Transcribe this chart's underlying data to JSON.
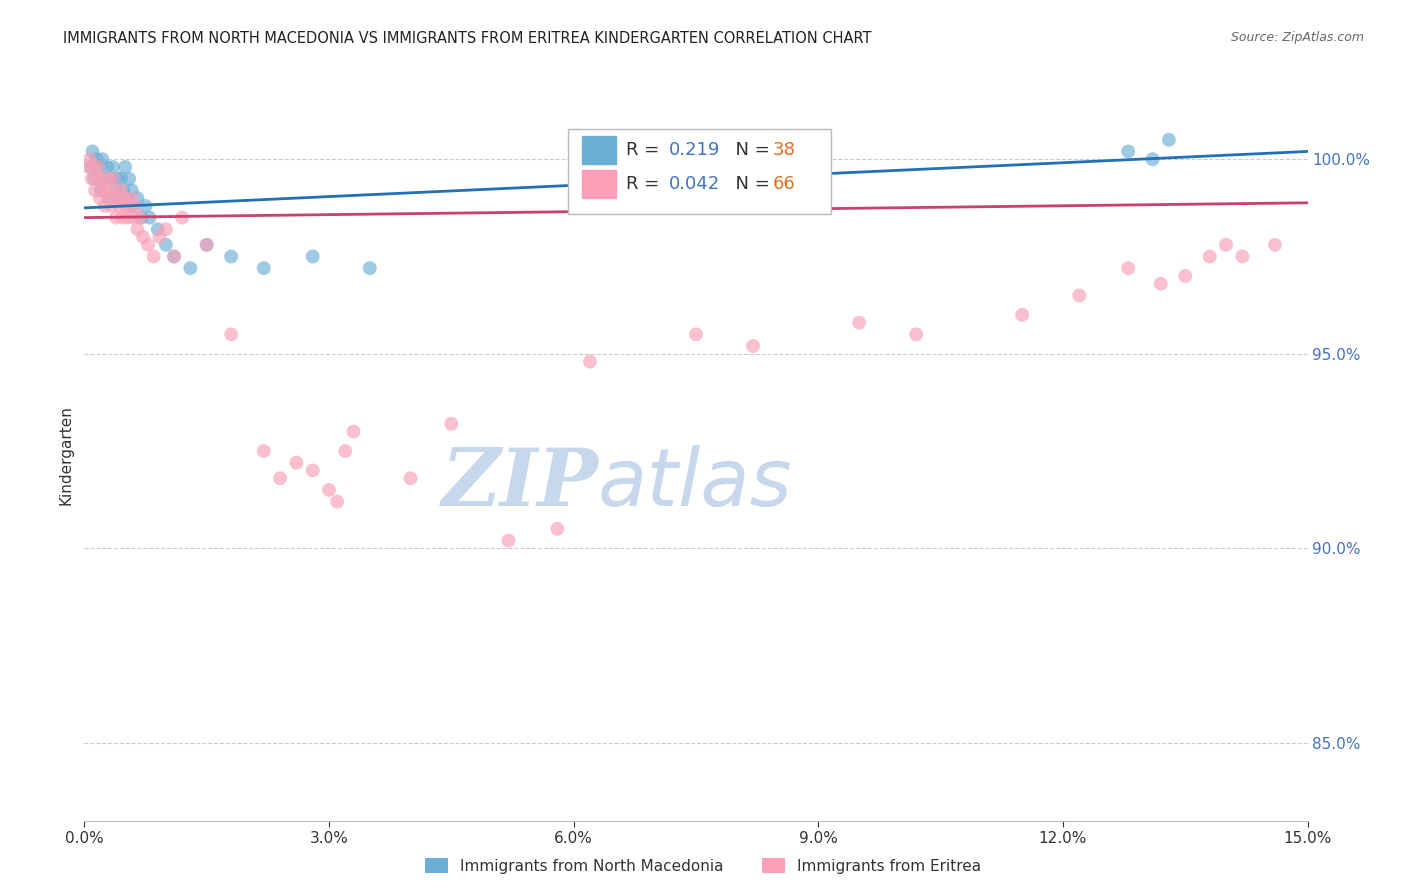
{
  "title": "IMMIGRANTS FROM NORTH MACEDONIA VS IMMIGRANTS FROM ERITREA KINDERGARTEN CORRELATION CHART",
  "source": "Source: ZipAtlas.com",
  "ylabel": "Kindergarten",
  "xlim": [
    0.0,
    15.0
  ],
  "ylim": [
    83.0,
    101.8
  ],
  "yticks": [
    85.0,
    90.0,
    95.0,
    100.0
  ],
  "xticks": [
    0.0,
    3.0,
    6.0,
    9.0,
    12.0,
    15.0
  ],
  "blue_label": "Immigrants from North Macedonia",
  "pink_label": "Immigrants from Eritrea",
  "blue_R": 0.219,
  "blue_N": 38,
  "pink_R": 0.042,
  "pink_N": 66,
  "blue_color": "#6baed6",
  "pink_color": "#fa9fb5",
  "blue_line_color": "#2171b5",
  "pink_line_color": "#c9426b",
  "watermark_zip": "ZIP",
  "watermark_atlas": "atlas",
  "watermark_color_zip": "#c8d8ec",
  "watermark_color_atlas": "#c8d8ec",
  "blue_x": [
    0.08,
    0.1,
    0.12,
    0.15,
    0.18,
    0.2,
    0.22,
    0.25,
    0.28,
    0.3,
    0.32,
    0.35,
    0.38,
    0.4,
    0.42,
    0.45,
    0.48,
    0.5,
    0.52,
    0.55,
    0.58,
    0.6,
    0.65,
    0.7,
    0.75,
    0.8,
    0.9,
    1.0,
    1.1,
    1.3,
    1.5,
    1.8,
    2.2,
    2.8,
    3.5,
    12.8,
    13.1,
    13.3
  ],
  "blue_y": [
    99.8,
    100.2,
    99.5,
    100.0,
    99.8,
    99.2,
    100.0,
    99.5,
    99.8,
    99.0,
    99.5,
    99.8,
    99.2,
    99.5,
    99.0,
    99.5,
    99.2,
    99.8,
    99.0,
    99.5,
    99.2,
    98.8,
    99.0,
    98.5,
    98.8,
    98.5,
    98.2,
    97.8,
    97.5,
    97.2,
    97.8,
    97.5,
    97.2,
    97.5,
    97.2,
    100.2,
    100.0,
    100.5
  ],
  "pink_x": [
    0.05,
    0.07,
    0.09,
    0.11,
    0.13,
    0.15,
    0.17,
    0.19,
    0.21,
    0.23,
    0.25,
    0.27,
    0.29,
    0.31,
    0.33,
    0.35,
    0.37,
    0.39,
    0.41,
    0.43,
    0.45,
    0.47,
    0.49,
    0.51,
    0.53,
    0.55,
    0.58,
    0.6,
    0.62,
    0.65,
    0.68,
    0.72,
    0.78,
    0.85,
    0.92,
    1.0,
    1.1,
    1.2,
    1.5,
    1.8,
    2.2,
    2.4,
    2.6,
    2.8,
    3.0,
    3.1,
    3.2,
    3.3,
    4.0,
    4.5,
    5.2,
    5.8,
    6.2,
    7.5,
    8.2,
    9.5,
    10.2,
    11.5,
    12.2,
    12.8,
    13.2,
    13.5,
    13.8,
    14.0,
    14.2,
    14.6
  ],
  "pink_y": [
    99.8,
    100.0,
    99.5,
    99.8,
    99.2,
    99.5,
    99.8,
    99.0,
    99.5,
    99.2,
    98.8,
    99.2,
    99.5,
    99.0,
    98.8,
    99.5,
    99.2,
    98.5,
    99.0,
    98.8,
    99.2,
    98.5,
    99.0,
    98.8,
    98.5,
    98.8,
    99.0,
    98.5,
    98.8,
    98.2,
    98.5,
    98.0,
    97.8,
    97.5,
    98.0,
    98.2,
    97.5,
    98.5,
    97.8,
    95.5,
    92.5,
    91.8,
    92.2,
    92.0,
    91.5,
    91.2,
    92.5,
    93.0,
    91.8,
    93.2,
    90.2,
    90.5,
    94.8,
    95.5,
    95.2,
    95.8,
    95.5,
    96.0,
    96.5,
    97.2,
    96.8,
    97.0,
    97.5,
    97.8,
    97.5,
    97.8
  ]
}
